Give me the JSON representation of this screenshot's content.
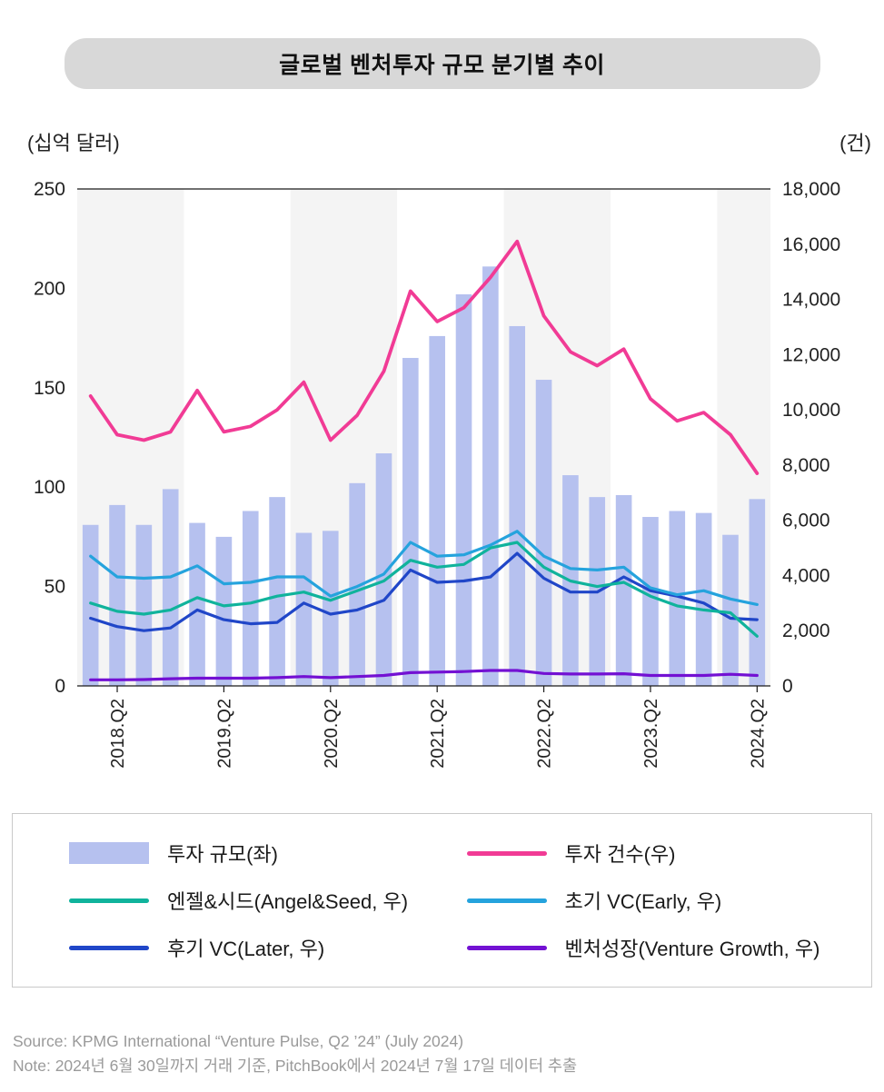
{
  "title": "글로벌 벤처투자 규모 분기별 추이",
  "left_axis_unit": "(십억 달러)",
  "right_axis_unit": "(건)",
  "chart_data": {
    "type": "bar+line combo",
    "x_quarters": [
      "2018.Q1",
      "2018.Q2",
      "2018.Q3",
      "2018.Q4",
      "2019.Q1",
      "2019.Q2",
      "2019.Q3",
      "2019.Q4",
      "2020.Q1",
      "2020.Q2",
      "2020.Q3",
      "2020.Q4",
      "2021.Q1",
      "2021.Q2",
      "2021.Q3",
      "2021.Q4",
      "2022.Q1",
      "2022.Q2",
      "2022.Q3",
      "2022.Q4",
      "2023.Q1",
      "2023.Q2",
      "2023.Q3",
      "2023.Q4",
      "2024.Q1",
      "2024.Q2"
    ],
    "x_tick_labels": [
      "2018.Q2",
      "2019.Q2",
      "2020.Q2",
      "2021.Q2",
      "2022.Q2",
      "2023.Q2",
      "2024.Q2"
    ],
    "left_axis": {
      "label": "(십억 달러)",
      "min": 0,
      "max": 250,
      "ticks": [
        0,
        50,
        100,
        150,
        200,
        250
      ]
    },
    "right_axis": {
      "label": "(건)",
      "min": 0,
      "max": 18000,
      "ticks": [
        0,
        2000,
        4000,
        6000,
        8000,
        10000,
        12000,
        14000,
        16000,
        18000
      ]
    },
    "year_bands": {
      "start_year": 2018,
      "color": "#f4f4f4"
    },
    "bars": {
      "name": "투자 규모(좌)",
      "axis": "left",
      "color": "#b6c1ef",
      "values": [
        81,
        91,
        81,
        99,
        82,
        75,
        88,
        95,
        77,
        78,
        102,
        117,
        165,
        176,
        197,
        211,
        181,
        154,
        106,
        95,
        96,
        85,
        88,
        87,
        76,
        94
      ]
    },
    "lines": [
      {
        "key": "venture-growth",
        "name": "벤처성장(Venture Growth, 우)",
        "axis": "right",
        "color": "#7311d3",
        "width": 3.2,
        "values": [
          220,
          220,
          230,
          260,
          280,
          280,
          280,
          300,
          340,
          300,
          340,
          380,
          480,
          500,
          520,
          560,
          560,
          450,
          430,
          430,
          440,
          380,
          380,
          380,
          420,
          380
        ]
      },
      {
        "key": "later-vc",
        "name": "후기 VC(Later, 우)",
        "axis": "right",
        "color": "#2046c8",
        "width": 3.2,
        "values": [
          2450,
          2150,
          2000,
          2100,
          2750,
          2400,
          2250,
          2300,
          3000,
          2600,
          2750,
          3100,
          4200,
          3750,
          3800,
          3950,
          4800,
          3900,
          3400,
          3400,
          3950,
          3450,
          3250,
          3000,
          2450,
          2400
        ]
      },
      {
        "key": "angel-seed",
        "name": "엔젤&시드(Angel&Seed, 우)",
        "axis": "right",
        "color": "#10b39c",
        "width": 3.2,
        "values": [
          3000,
          2700,
          2600,
          2750,
          3200,
          2900,
          3000,
          3250,
          3400,
          3100,
          3450,
          3800,
          4550,
          4300,
          4400,
          5000,
          5200,
          4300,
          3800,
          3600,
          3750,
          3250,
          2900,
          2750,
          2650,
          1800
        ]
      },
      {
        "key": "early-vc",
        "name": "초기 VC(Early, 우)",
        "axis": "right",
        "color": "#25a3dd",
        "width": 3.2,
        "values": [
          4700,
          3950,
          3900,
          3950,
          4350,
          3700,
          3750,
          3950,
          3950,
          3250,
          3600,
          4050,
          5200,
          4700,
          4750,
          5100,
          5600,
          4700,
          4250,
          4200,
          4300,
          3550,
          3300,
          3450,
          3150,
          2950
        ]
      },
      {
        "key": "deal-count",
        "name": "투자 건수(우)",
        "axis": "right",
        "color": "#f13b95",
        "width": 3.8,
        "values": [
          10500,
          9100,
          8900,
          9200,
          10700,
          9200,
          9400,
          10000,
          11000,
          8900,
          9800,
          11400,
          14300,
          13200,
          13700,
          14800,
          16100,
          13400,
          12100,
          11600,
          12200,
          10400,
          9600,
          9900,
          9100,
          7700
        ]
      }
    ]
  },
  "legend": {
    "items": [
      {
        "label": "투자 규모(좌)",
        "swatch": "bar",
        "color": "#b6c1ef"
      },
      {
        "label": "투자 건수(우)",
        "swatch": "line",
        "color": "#f13b95"
      },
      {
        "label": "엔젤&시드(Angel&Seed, 우)",
        "swatch": "line",
        "color": "#10b39c"
      },
      {
        "label": "초기 VC(Early, 우)",
        "swatch": "line",
        "color": "#25a3dd"
      },
      {
        "label": "후기 VC(Later, 우)",
        "swatch": "line",
        "color": "#2046c8"
      },
      {
        "label": "벤처성장(Venture Growth, 우)",
        "swatch": "line",
        "color": "#7311d3"
      }
    ]
  },
  "footer": {
    "source": "Source: KPMG International “Venture Pulse, Q2 ’24”  (July 2024)",
    "note": "Note: 2024년 6월 30일까지 거래 기준, PitchBook에서 2024년 7월 17일 데이터 추출"
  }
}
